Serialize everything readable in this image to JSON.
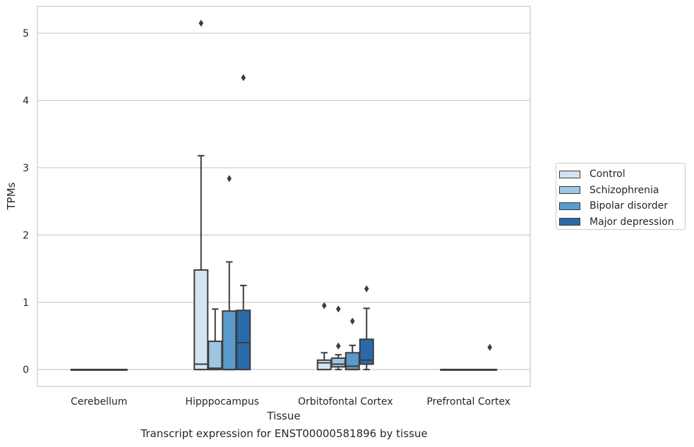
{
  "chart_data": {
    "type": "box",
    "xlabel": "Tissue",
    "ylabel": "TPMs",
    "caption": "Transcript expression for ENST00000581896 by tissue",
    "categories": [
      "Cerebellum",
      "Hipppocampus",
      "Orbitofontal Cortex",
      "Prefrontal Cortex"
    ],
    "ylim": [
      -0.25,
      5.4
    ],
    "yticks": [
      0,
      1,
      2,
      3,
      4,
      5
    ],
    "grid": true,
    "legend_position": "right",
    "series": [
      {
        "name": "Control",
        "color": "#d3e3f2",
        "boxes": [
          {
            "whislo": 0,
            "q1": 0,
            "med": 0,
            "q3": 0,
            "whishi": 0,
            "fliers": []
          },
          {
            "whislo": 0,
            "q1": 0,
            "med": 0.08,
            "q3": 1.48,
            "whishi": 3.18,
            "fliers": [
              5.15
            ]
          },
          {
            "whislo": 0,
            "q1": 0,
            "med": 0.1,
            "q3": 0.14,
            "whishi": 0.25,
            "fliers": [
              0.95
            ]
          },
          {
            "whislo": 0,
            "q1": 0,
            "med": 0,
            "q3": 0,
            "whishi": 0,
            "fliers": []
          }
        ]
      },
      {
        "name": "Schizophrenia",
        "color": "#9fc6e0",
        "boxes": [
          {
            "whislo": 0,
            "q1": 0,
            "med": 0,
            "q3": 0,
            "whishi": 0,
            "fliers": []
          },
          {
            "whislo": 0,
            "q1": 0,
            "med": 0.02,
            "q3": 0.42,
            "whishi": 0.9,
            "fliers": []
          },
          {
            "whislo": 0,
            "q1": 0.04,
            "med": 0.08,
            "q3": 0.17,
            "whishi": 0.22,
            "fliers": [
              0.35,
              0.9
            ]
          },
          {
            "whislo": 0,
            "q1": 0,
            "med": 0,
            "q3": 0,
            "whishi": 0,
            "fliers": []
          }
        ]
      },
      {
        "name": "Bipolar disorder",
        "color": "#5b9bcb",
        "boxes": [
          {
            "whislo": 0,
            "q1": 0,
            "med": 0,
            "q3": 0,
            "whishi": 0,
            "fliers": []
          },
          {
            "whislo": 0,
            "q1": 0,
            "med": 0,
            "q3": 0.87,
            "whishi": 1.6,
            "fliers": [
              2.84
            ]
          },
          {
            "whislo": 0,
            "q1": 0,
            "med": 0.05,
            "q3": 0.25,
            "whishi": 0.36,
            "fliers": [
              0.72
            ]
          },
          {
            "whislo": 0,
            "q1": 0,
            "med": 0,
            "q3": 0,
            "whishi": 0,
            "fliers": []
          }
        ]
      },
      {
        "name": "Major depression",
        "color": "#2a6aa9",
        "boxes": [
          {
            "whislo": 0,
            "q1": 0,
            "med": 0,
            "q3": 0,
            "whishi": 0,
            "fliers": []
          },
          {
            "whislo": 0,
            "q1": 0,
            "med": 0.4,
            "q3": 0.88,
            "whishi": 1.25,
            "fliers": [
              4.34
            ]
          },
          {
            "whislo": 0,
            "q1": 0.08,
            "med": 0.14,
            "q3": 0.45,
            "whishi": 0.91,
            "fliers": [
              1.2
            ]
          },
          {
            "whislo": 0,
            "q1": 0,
            "med": 0,
            "q3": 0,
            "whishi": 0,
            "fliers": [
              0.33
            ]
          }
        ]
      }
    ]
  }
}
